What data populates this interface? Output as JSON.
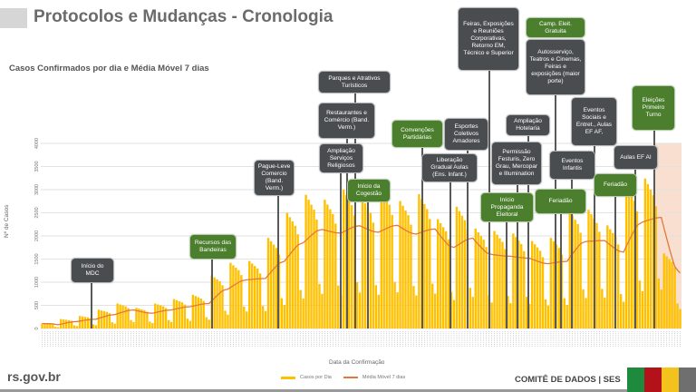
{
  "header": {
    "title": "Protocolos e Mudanças - Cronologia"
  },
  "footer": {
    "url": "rs.gov.br",
    "org": "COMITÊ DE DADOS | SES",
    "flag_colors": [
      "#1e8a3e",
      "#b3121b",
      "#f4c21d",
      "#6f6f6f"
    ]
  },
  "annotations": [
    {
      "label": "Início do MDC",
      "kind": "dark"
    },
    {
      "label": "Recursos das Bandeiras",
      "kind": "green"
    },
    {
      "label": "Pague-Leve Comercio (Band. Verm.)",
      "kind": "dark"
    },
    {
      "label": "Parques e Atrativos Turísticos",
      "kind": "dark"
    },
    {
      "label": "Restaurantes e Comércio (Band. Verm.)",
      "kind": "dark"
    },
    {
      "label": "Ampliação Serviços Religiosos",
      "kind": "dark"
    },
    {
      "label": "Início da Cogestão",
      "kind": "green"
    },
    {
      "label": "Convenções Partidárias",
      "kind": "green"
    },
    {
      "label": "Esportes Coletivos Amadores",
      "kind": "dark"
    },
    {
      "label": "Liberação Gradual Aulas (Ens. Infant.)",
      "kind": "dark"
    },
    {
      "label": "Feiras, Exposições e Reuniões Corporativas, Retorno EM, Técnico e Superior",
      "kind": "dark"
    },
    {
      "label": "Camp. Eleit. Gratuita",
      "kind": "green"
    },
    {
      "label": "Autosserviço, Teatros e Cinemas, Feiras e exposições (maior porte)",
      "kind": "dark"
    },
    {
      "label": "Ampliação Hotelaria",
      "kind": "dark"
    },
    {
      "label": "Permissão Festuris, Zero Grau, Mercopar e Illumination",
      "kind": "dark"
    },
    {
      "label": "Início Propaganda Eleitoral",
      "kind": "green"
    },
    {
      "label": "Feriadão",
      "kind": "green"
    },
    {
      "label": "Eventos Infantis",
      "kind": "dark"
    },
    {
      "label": "Eventos Sociais e Entret., Aulas EF AF,",
      "kind": "dark"
    },
    {
      "label": "Aulas EF AI",
      "kind": "dark"
    },
    {
      "label": "Feriadão",
      "kind": "green"
    },
    {
      "label": "Eleições Primeiro Turno",
      "kind": "green"
    }
  ],
  "chart_data": {
    "type": "bar",
    "title": "Casos Confirmados por dia e Média Móvel 7 dias",
    "xlabel": "Data da Confirmação",
    "ylabel": "Nº de Casos",
    "ylim": [
      0,
      4000
    ],
    "yticks": [
      "0",
      "500",
      "1000",
      "1500",
      "2000",
      "2500",
      "3000",
      "3500",
      "4000"
    ],
    "grid": true,
    "legend_position": "bottom",
    "colors": {
      "bars": "#ffc000",
      "moving_average": "#e2793a",
      "shaded_region": "#f8dfd0"
    },
    "shaded_region_days": [
      228,
      238
    ],
    "series": [
      {
        "name": "Casos por Dia",
        "type": "bar",
        "values": [
          108,
          104,
          100,
          96,
          88,
          36,
          28,
          203,
          195,
          188,
          180,
          165,
          68,
          53,
          270,
          260,
          250,
          240,
          220,
          90,
          70,
          405,
          390,
          375,
          360,
          330,
          135,
          105,
          540,
          520,
          500,
          480,
          440,
          180,
          140,
          446,
          429,
          413,
          396,
          363,
          149,
          116,
          540,
          520,
          500,
          480,
          440,
          180,
          140,
          635,
          611,
          588,
          564,
          517,
          212,
          165,
          729,
          702,
          675,
          648,
          594,
          243,
          189,
          1148,
          1105,
          1063,
          1020,
          935,
          383,
          298,
          1418,
          1365,
          1313,
          1260,
          1155,
          473,
          368,
          1458,
          1404,
          1350,
          1296,
          1188,
          486,
          378,
          1958,
          1885,
          1813,
          1740,
          1595,
          653,
          508,
          2498,
          2405,
          2313,
          2220,
          2035,
          833,
          648,
          2889,
          2782,
          2675,
          2568,
          2354,
          963,
          749,
          2781,
          2678,
          2575,
          2472,
          2266,
          927,
          721,
          2997,
          2886,
          2775,
          2664,
          2442,
          999,
          777,
          2808,
          2704,
          2600,
          2496,
          2288,
          936,
          728,
          3011,
          2899,
          2788,
          2676,
          2453,
          1004,
          781,
          2754,
          2652,
          2550,
          2448,
          2244,
          918,
          714,
          2903,
          2795,
          2688,
          2580,
          2365,
          968,
          753,
          2363,
          2275,
          2188,
          2100,
          1925,
          788,
          613,
          2633,
          2535,
          2438,
          2340,
          2145,
          878,
          683,
          2160,
          2080,
          2000,
          1920,
          1760,
          720,
          560,
          2106,
          2028,
          1950,
          1872,
          1716,
          702,
          546,
          2052,
          1976,
          1900,
          1824,
          1672,
          684,
          532,
          1890,
          1820,
          1750,
          1680,
          1540,
          630,
          490,
          1958,
          1885,
          1813,
          1740,
          1595,
          653,
          508,
          2538,
          2444,
          2350,
          2256,
          2068,
          846,
          658,
          2565,
          2470,
          2375,
          2280,
          2090,
          855,
          665,
          2228,
          2145,
          2063,
          1980,
          1815,
          743,
          578,
          3105,
          2990,
          2875,
          2760,
          2530,
          1035,
          805,
          3240,
          3120,
          3000,
          2880,
          2640,
          1080,
          840,
          1620,
          1560,
          1500,
          1440,
          1320,
          540,
          420
        ]
      },
      {
        "name": "Média Móvel 7 dias",
        "type": "line",
        "derived_from": "Casos por Dia"
      }
    ]
  }
}
